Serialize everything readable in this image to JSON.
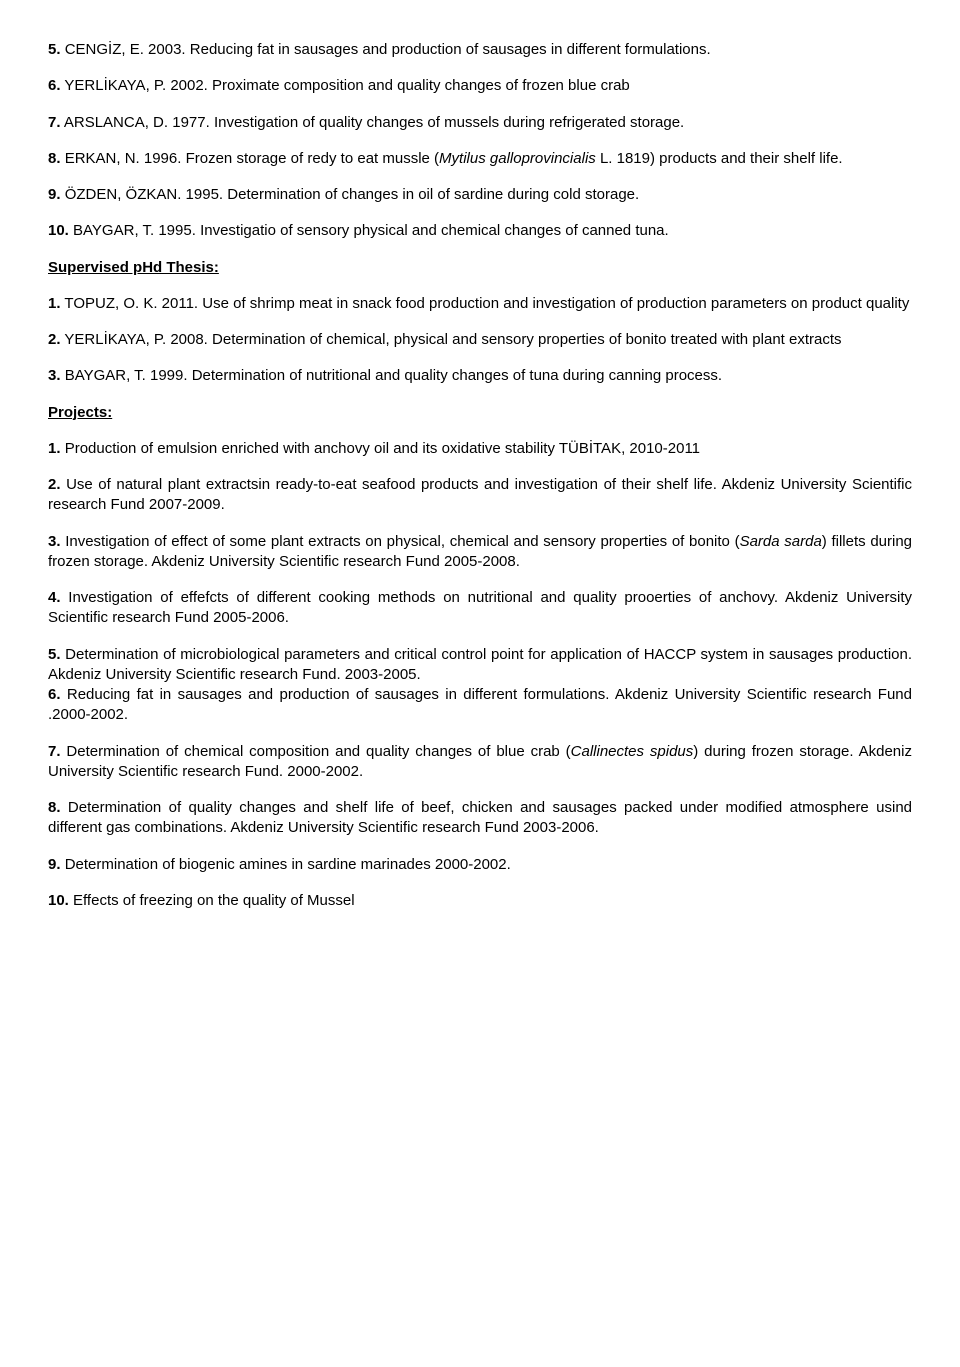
{
  "msc": [
    {
      "num": "5.",
      "author": "CENGİZ, E.",
      "year": "2003.",
      "title": "Reducing fat in sausages and production of sausages in different formulations."
    },
    {
      "num": "6.",
      "author": "YERLİKAYA, P.",
      "year": "2002.",
      "title": "Proximate composition and quality changes of frozen blue crab"
    },
    {
      "num": "7.",
      "author": "ARSLANCA, D.",
      "year": "1977.",
      "title": "Investigation of quality changes of mussels during refrigerated storage."
    },
    {
      "num": "8.",
      "author": "ERKAN, N.",
      "year": "1996.",
      "title_pre": "Frozen storage of redy to eat mussle (",
      "title_italic": "Mytilus galloprovincialis",
      "title_post": " L. 1819) products and their shelf life."
    },
    {
      "num": "9.",
      "author": "ÖZDEN, ÖZKAN.",
      "year": "1995.",
      "title": "Determination of changes in oil of sardine during cold storage."
    },
    {
      "num": "10.",
      "author": "BAYGAR, T.",
      "year": "1995.",
      "title": "Investigatio of sensory physical and chemical changes of canned tuna."
    }
  ],
  "phd_heading": "Supervised pHd Thesis:",
  "phd": [
    {
      "num": "1.",
      "author": "TOPUZ, O. K.",
      "year": "2011.",
      "title": "Use of shrimp meat in snack food production and investigation of production parameters on product quality"
    },
    {
      "num": "2.",
      "author": "YERLİKAYA, P.",
      "year": "2008.",
      "title": "Determination of chemical, physical and sensory properties of bonito treated with plant extracts"
    },
    {
      "num": "3.",
      "author": "BAYGAR, T.",
      "year": "1999.",
      "title": "Determination of nutritional and quality changes of tuna during canning process."
    }
  ],
  "projects_heading": "Projects:",
  "projects": [
    {
      "num": "1.",
      "text": "Production of emulsion enriched with anchovy oil and its oxidative stability TÜBİTAK, 2010-2011"
    },
    {
      "num": "2.",
      "text": "Use of natural plant extractsin ready-to-eat seafood products and investigation of their shelf life. Akdeniz University Scientific research Fund 2007-2009."
    },
    {
      "num": "3.",
      "text_pre": "Investigation of effect of some plant extracts on physical, chemical and sensory properties of bonito (",
      "text_italic": "Sarda sarda",
      "text_post": ") fillets during frozen storage. Akdeniz University Scientific research Fund  2005-2008."
    },
    {
      "num": "4.",
      "text": "Investigation of effefcts of different cooking methods on nutritional and quality prooerties of anchovy. Akdeniz University Scientific research Fund 2005-2006."
    },
    {
      "num": "5.",
      "text": "Determination of microbiological parameters and critical control point for application of HACCP system in sausages production. Akdeniz University Scientific research Fund. 2003-2005."
    },
    {
      "num": "6.",
      "text": "Reducing fat in sausages and production of sausages in different formulations. Akdeniz University Scientific research Fund .2000-2002."
    },
    {
      "num": "7.",
      "text_pre": "Determination of chemical composition and quality changes of blue crab (",
      "text_italic": "Callinectes spidus",
      "text_post": ") during frozen storage. Akdeniz University Scientific research Fund.  2000-2002."
    },
    {
      "num": "8.",
      "text": "Determination of quality changes and shelf life of beef, chicken and sausages packed under modified atmosphere usind different gas combinations. Akdeniz University Scientific research Fund 2003-2006."
    },
    {
      "num": "9.",
      "text": "Determination of biogenic amines in sardine marinades 2000-2002."
    },
    {
      "num": "10.",
      "text": "Effects of freezing on the quality of Mussel"
    }
  ],
  "combined_5_6": true
}
